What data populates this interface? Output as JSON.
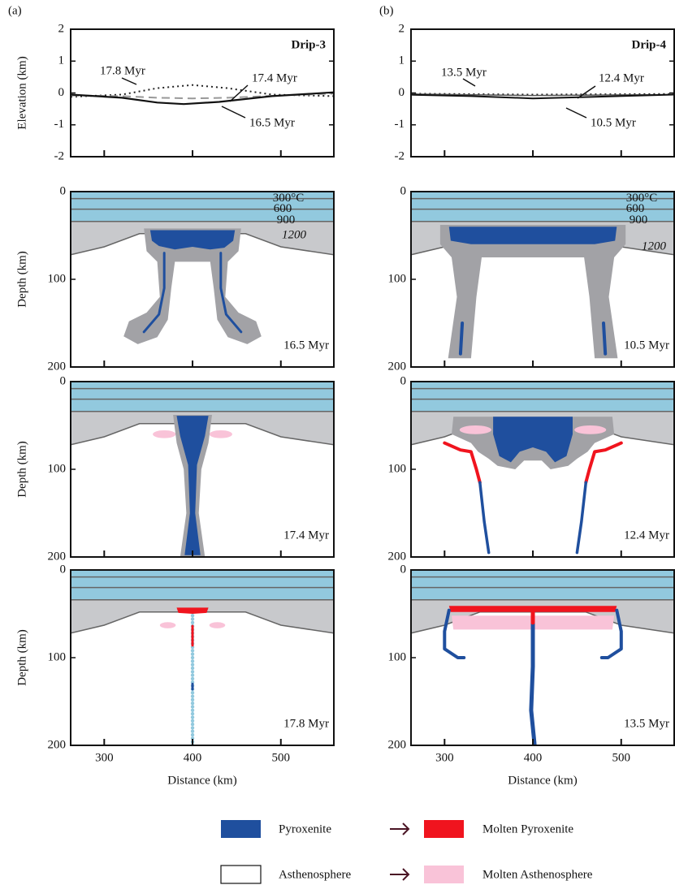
{
  "figure": {
    "panels": [
      {
        "label": "(a)",
        "title": "Drip-3",
        "elevation_annotations": [
          "17.8 Myr",
          "17.4 Myr",
          "16.5 Myr"
        ],
        "snapshot_times": [
          "16.5 Myr",
          "17.4 Myr",
          "17.8 Myr"
        ]
      },
      {
        "label": "(b)",
        "title": "Drip-4",
        "elevation_annotations": [
          "13.5 Myr",
          "12.4 Myr",
          "10.5 Myr"
        ],
        "snapshot_times": [
          "10.5 Myr",
          "12.4 Myr",
          "13.5 Myr"
        ]
      }
    ],
    "elevation_axis": {
      "label": "Elevation (km)",
      "ylim": [
        -2,
        2
      ],
      "yticks": [
        -2,
        -1,
        0,
        1,
        2
      ]
    },
    "depth_axis": {
      "label": "Depth (km)",
      "ylim": [
        0,
        200
      ],
      "yticks": [
        0,
        100,
        200
      ]
    },
    "distance_axis": {
      "label": "Distance (km)",
      "xlim": [
        262,
        560
      ],
      "xticks": [
        300,
        400,
        500
      ]
    },
    "isotherm_labels": [
      "300°C",
      "600",
      "900",
      "1200"
    ],
    "legend": [
      {
        "label": "Pyroxenite",
        "color": "#1f4f9e"
      },
      {
        "label": "Molten Pyroxenite",
        "color": "#f0141e"
      },
      {
        "label": "Asthenosphere",
        "color": "#ffffff"
      },
      {
        "label": "Molten Asthenosphere",
        "color": "#f9c3d8"
      }
    ]
  }
}
